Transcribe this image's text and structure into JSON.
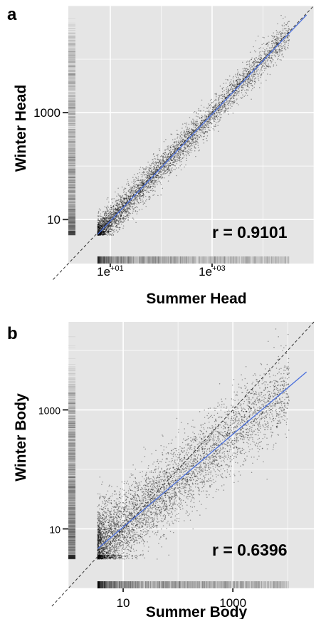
{
  "chart_data": [
    {
      "panel": "a",
      "type": "scatter",
      "title": "",
      "xlabel": "Summer Head",
      "ylabel": "Winter Head",
      "x_scale": "log",
      "y_scale": "log",
      "xlim": [
        1.5,
        100000
      ],
      "ylim": [
        1.5,
        100000
      ],
      "x_ticks": [
        {
          "value": 10,
          "base": "1e",
          "exponent": "+01"
        },
        {
          "value": 1000,
          "base": "1e",
          "exponent": "+03"
        }
      ],
      "y_ticks": [
        {
          "value": 10,
          "label": "10"
        },
        {
          "value": 1000,
          "label": "1000"
        }
      ],
      "annotation": "r = 0.9101",
      "correlation": 0.9101,
      "fit_line": {
        "color": "#4a6fdc",
        "slope": 1.0,
        "intercept": -0.03
      },
      "identity_line": {
        "style": "dashed",
        "color": "#333333"
      },
      "point_spread_log10": 0.16,
      "point_color": "#000000",
      "background": "#e5e5e5",
      "grid": true
    },
    {
      "panel": "b",
      "type": "scatter",
      "title": "",
      "xlabel": "Summer Body",
      "ylabel": "Winter Body",
      "x_scale": "log",
      "y_scale": "log",
      "xlim": [
        1.0,
        30000
      ],
      "ylim": [
        1.0,
        30000
      ],
      "x_ticks": [
        {
          "value": 10,
          "label": "10"
        },
        {
          "value": 1000,
          "label": "1000"
        }
      ],
      "y_ticks": [
        {
          "value": 10,
          "label": "10"
        },
        {
          "value": 1000,
          "label": "1000"
        }
      ],
      "annotation": "r = 0.6396",
      "correlation": 0.6396,
      "fit_line": {
        "color": "#4a6fdc",
        "slope": 0.78,
        "intercept": 0.25
      },
      "identity_line": {
        "style": "dashed",
        "color": "#333333"
      },
      "point_spread_log10": 0.33,
      "point_color": "#000000",
      "background": "#e5e5e5",
      "grid": true
    }
  ],
  "panel_labels": {
    "a": "a",
    "b": "b"
  }
}
